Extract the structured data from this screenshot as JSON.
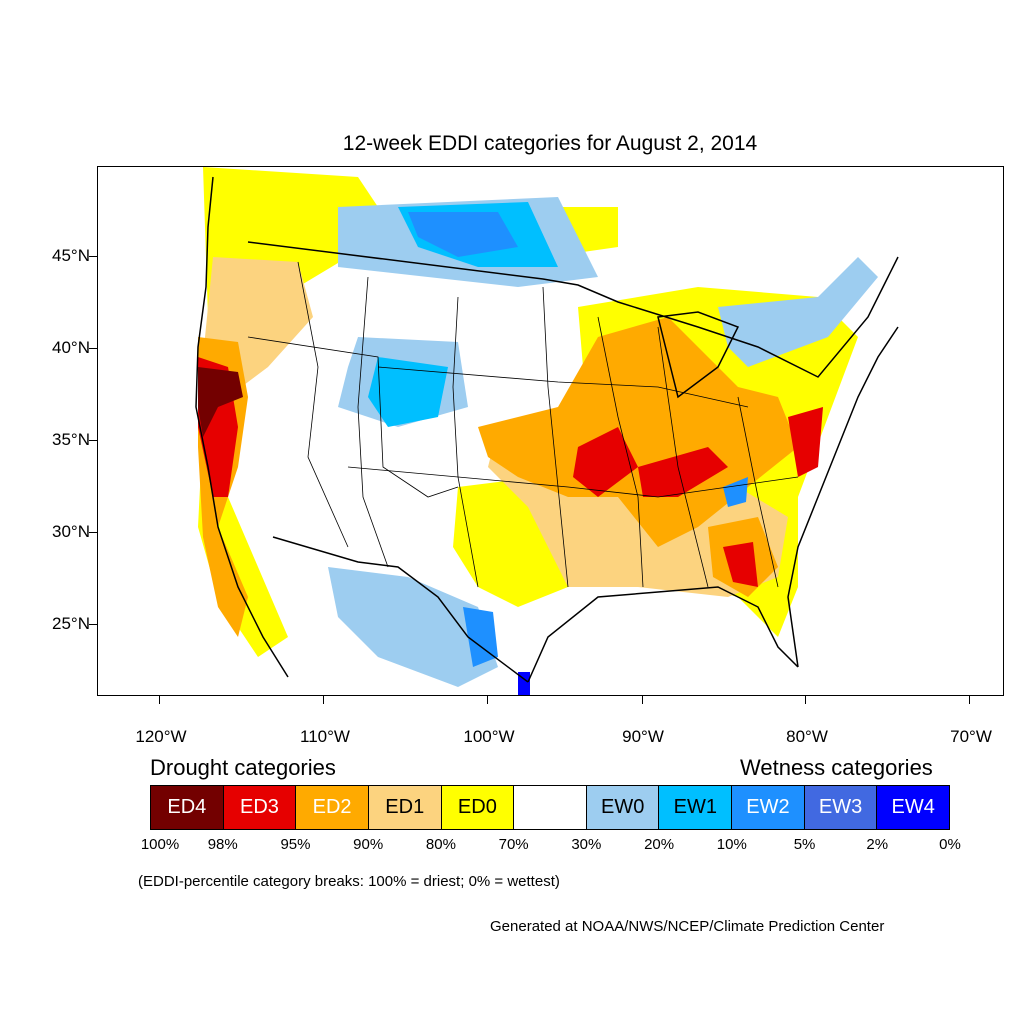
{
  "title": "12-week EDDI categories for August 2, 2014",
  "lat_labels": [
    "45°N",
    "40°N",
    "35°N",
    "30°N",
    "25°N"
  ],
  "lon_labels": [
    "120°W",
    "110°W",
    "100°W",
    "90°W",
    "80°W",
    "70°W"
  ],
  "legend": {
    "drought_heading": "Drought categories",
    "wetness_heading": "Wetness categories",
    "categories": [
      {
        "label": "ED4",
        "color": "#730000",
        "text_color": "#ffffff"
      },
      {
        "label": "ED3",
        "color": "#e60000",
        "text_color": "#ffffff"
      },
      {
        "label": "ED2",
        "color": "#ffaa00",
        "text_color": "#ffffff"
      },
      {
        "label": "ED1",
        "color": "#fcd37f",
        "text_color": "#000000"
      },
      {
        "label": "ED0",
        "color": "#ffff00",
        "text_color": "#000000"
      },
      {
        "label": "",
        "color": "#ffffff",
        "text_color": "#000000"
      },
      {
        "label": "EW0",
        "color": "#9dcdf0",
        "text_color": "#000000"
      },
      {
        "label": "EW1",
        "color": "#00bfff",
        "text_color": "#000000"
      },
      {
        "label": "EW2",
        "color": "#1e90ff",
        "text_color": "#ffffff"
      },
      {
        "label": "EW3",
        "color": "#4169e1",
        "text_color": "#ffffff"
      },
      {
        "label": "EW4",
        "color": "#0000ff",
        "text_color": "#ffffff"
      }
    ],
    "percentiles": [
      "100%",
      "98%",
      "95%",
      "90%",
      "80%",
      "70%",
      "30%",
      "20%",
      "10%",
      "5%",
      "2%",
      "0%"
    ]
  },
  "note": "(EDDI-percentile category breaks: 100% = driest; 0% = wettest)",
  "credit": "Generated at NOAA/NWS/NCEP/Climate Prediction Center"
}
